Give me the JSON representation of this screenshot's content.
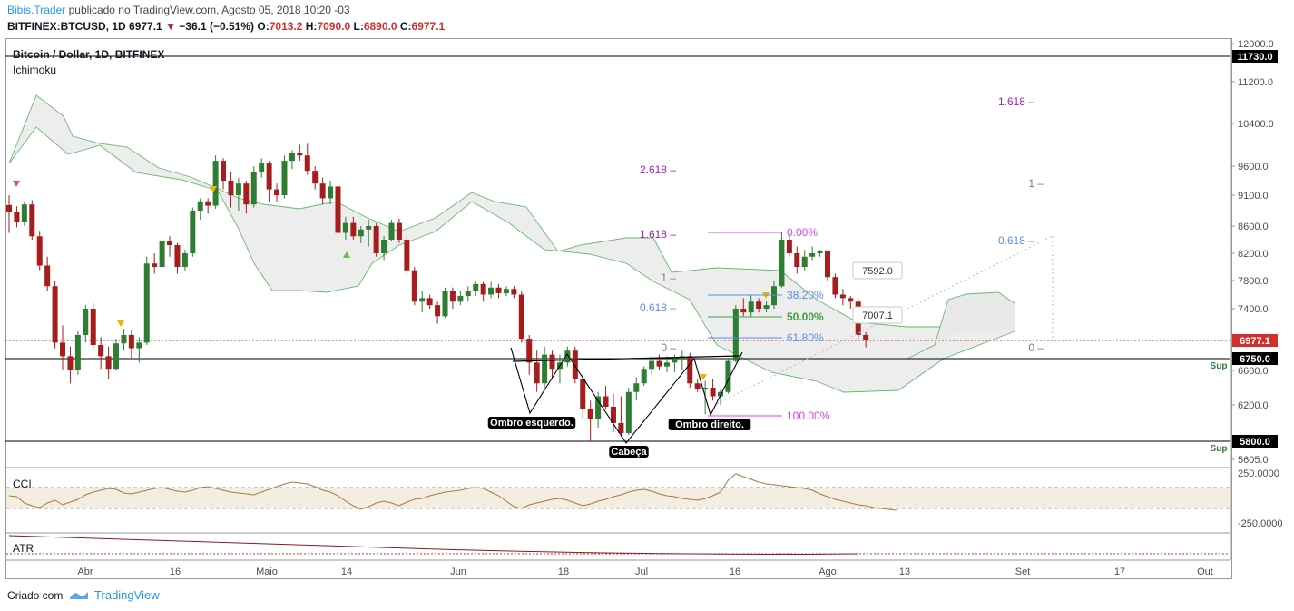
{
  "header": {
    "author": "Bibis.Trader",
    "published": "publicado no TradingView.com, Agosto 05, 2018 10:20 -03",
    "symbol": "BITFINEX:BTCUSD, 1D",
    "last": "6977.1",
    "change": "−36.1 (−0.51%)",
    "open_label": "O:",
    "open": "7013.2",
    "high_label": "H:",
    "high": "7090.0",
    "low_label": "L:",
    "low": "6890.0",
    "close_label": "C:",
    "close": "6977.1"
  },
  "panes": {
    "main_title": "Bitcoin / Dollar, 1D, BITFINEX",
    "indicator": "Ichimoku",
    "cci_label": "CCI",
    "atr_label": "ATR"
  },
  "footer": {
    "created": "Criado com",
    "brand": "TradingView"
  },
  "colors": {
    "up": "#2e7d32",
    "down": "#a51d1d",
    "cloud": "#e9e9e9",
    "cloud_edge": "#66bb6a",
    "cci": "#a67c3a",
    "atr": "#8b1a1a",
    "purple": "#9c27b0",
    "blue": "#5b8def",
    "green": "#43a047"
  },
  "chart_data": {
    "type": "candlestick",
    "title": "Bitcoin / Dollar, 1D, BITFINEX",
    "y_ticks": [
      "12000.0",
      "11200.0",
      "10400.0",
      "9600.0",
      "9100.0",
      "8600.0",
      "8200.0",
      "7800.0",
      "7400.0",
      "6600.0",
      "6200.0",
      "5800.0",
      "5605.0"
    ],
    "x_ticks": [
      "Abr",
      "16",
      "Maio",
      "14",
      "Jun",
      "18",
      "Jul",
      "16",
      "Ago",
      "13",
      "Set",
      "17",
      "Out"
    ],
    "price_badges": [
      {
        "value": "11730.0",
        "color": "#000000"
      },
      {
        "value": "6977.1",
        "color": "#d32f2f"
      },
      {
        "value": "6750.0",
        "color": "#000000"
      },
      {
        "value": "5800.0",
        "color": "#000000"
      }
    ],
    "support_labels": [
      "Sup",
      "Sup"
    ],
    "candles": [
      [
        8940,
        9100,
        8500,
        8830
      ],
      [
        8830,
        8920,
        8580,
        8660
      ],
      [
        8660,
        9000,
        8600,
        8950
      ],
      [
        8950,
        9020,
        8400,
        8450
      ],
      [
        8450,
        8530,
        7950,
        8020
      ],
      [
        8020,
        8150,
        7650,
        7720
      ],
      [
        7720,
        7800,
        6880,
        6950
      ],
      [
        6950,
        7180,
        6600,
        6780
      ],
      [
        6780,
        6900,
        6450,
        6600
      ],
      [
        6600,
        7100,
        6550,
        7050
      ],
      [
        7050,
        7450,
        6950,
        7400
      ],
      [
        7400,
        7480,
        6850,
        6920
      ],
      [
        6920,
        7020,
        6620,
        6780
      ],
      [
        6780,
        6900,
        6500,
        6620
      ],
      [
        6620,
        7000,
        6600,
        6940
      ],
      [
        6940,
        7130,
        6850,
        7050
      ],
      [
        7050,
        7120,
        6750,
        6880
      ],
      [
        6880,
        7020,
        6700,
        6950
      ],
      [
        6950,
        8150,
        6920,
        8050
      ],
      [
        8050,
        8200,
        7900,
        8000
      ],
      [
        8000,
        8420,
        7980,
        8380
      ],
      [
        8380,
        8450,
        8150,
        8320
      ],
      [
        8320,
        8350,
        7900,
        8000
      ],
      [
        8000,
        8250,
        7950,
        8200
      ],
      [
        8200,
        8900,
        8150,
        8850
      ],
      [
        8850,
        9050,
        8700,
        9000
      ],
      [
        9000,
        9050,
        8800,
        8930
      ],
      [
        8930,
        9800,
        8880,
        9700
      ],
      [
        9700,
        9750,
        9200,
        9350
      ],
      [
        9350,
        9500,
        8900,
        9100
      ],
      [
        9100,
        9400,
        8850,
        9300
      ],
      [
        9300,
        9350,
        8800,
        8950
      ],
      [
        8950,
        9600,
        8900,
        9500
      ],
      [
        9500,
        9750,
        9400,
        9650
      ],
      [
        9650,
        9700,
        9000,
        9200
      ],
      [
        9200,
        9300,
        9000,
        9100
      ],
      [
        9100,
        9800,
        9050,
        9700
      ],
      [
        9700,
        9900,
        9550,
        9850
      ],
      [
        9850,
        10000,
        9700,
        9800
      ],
      [
        9800,
        10020,
        9450,
        9520
      ],
      [
        9520,
        9600,
        9200,
        9300
      ],
      [
        9300,
        9400,
        8950,
        9050
      ],
      [
        9050,
        9350,
        8950,
        9250
      ],
      [
        9250,
        9280,
        8450,
        8500
      ],
      [
        8500,
        8750,
        8400,
        8650
      ],
      [
        8650,
        8750,
        8400,
        8450
      ],
      [
        8450,
        8600,
        8350,
        8550
      ],
      [
        8550,
        8700,
        8300,
        8600
      ],
      [
        8600,
        8650,
        8150,
        8200
      ],
      [
        8200,
        8450,
        8100,
        8400
      ],
      [
        8400,
        8700,
        8380,
        8650
      ],
      [
        8650,
        8720,
        8350,
        8400
      ],
      [
        8400,
        8450,
        7900,
        7950
      ],
      [
        7950,
        8000,
        7450,
        7500
      ],
      [
        7500,
        7650,
        7350,
        7550
      ],
      [
        7550,
        7600,
        7400,
        7450
      ],
      [
        7450,
        7500,
        7200,
        7300
      ],
      [
        7300,
        7700,
        7280,
        7650
      ],
      [
        7650,
        7700,
        7400,
        7500
      ],
      [
        7500,
        7650,
        7450,
        7580
      ],
      [
        7580,
        7720,
        7500,
        7650
      ],
      [
        7650,
        7800,
        7580,
        7750
      ],
      [
        7750,
        7780,
        7500,
        7600
      ],
      [
        7600,
        7780,
        7550,
        7700
      ],
      [
        7700,
        7750,
        7550,
        7620
      ],
      [
        7620,
        7720,
        7580,
        7680
      ],
      [
        7680,
        7720,
        7550,
        7600
      ],
      [
        7600,
        7650,
        6950,
        7000
      ],
      [
        7000,
        7050,
        6550,
        6700
      ],
      [
        6700,
        6850,
        6350,
        6450
      ],
      [
        6450,
        6900,
        6400,
        6800
      ],
      [
        6800,
        6850,
        6500,
        6620
      ],
      [
        6620,
        6800,
        6450,
        6700
      ],
      [
        6700,
        6900,
        6650,
        6850
      ],
      [
        6850,
        6900,
        6450,
        6500
      ],
      [
        6500,
        6550,
        6050,
        6150
      ],
      [
        6150,
        6250,
        5800,
        6050
      ],
      [
        6050,
        6350,
        5950,
        6300
      ],
      [
        6300,
        6420,
        6150,
        6180
      ],
      [
        6180,
        6330,
        5900,
        6000
      ],
      [
        6000,
        6300,
        5850,
        5890
      ],
      [
        5890,
        6400,
        5870,
        6350
      ],
      [
        6350,
        6520,
        6250,
        6450
      ],
      [
        6450,
        6650,
        6420,
        6620
      ],
      [
        6620,
        6780,
        6550,
        6720
      ],
      [
        6720,
        6800,
        6600,
        6650
      ],
      [
        6650,
        6780,
        6580,
        6700
      ],
      [
        6700,
        6800,
        6580,
        6750
      ],
      [
        6750,
        6850,
        6600,
        6780
      ],
      [
        6780,
        6820,
        6400,
        6450
      ],
      [
        6450,
        6500,
        6350,
        6380
      ],
      [
        6380,
        6480,
        6100,
        6400
      ],
      [
        6400,
        6500,
        6250,
        6300
      ],
      [
        6300,
        6380,
        6200,
        6350
      ],
      [
        6350,
        6750,
        6330,
        6720
      ],
      [
        6720,
        7450,
        6700,
        7400
      ],
      [
        7400,
        7550,
        7300,
        7350
      ],
      [
        7350,
        7600,
        7300,
        7500
      ],
      [
        7500,
        7550,
        7350,
        7400
      ],
      [
        7400,
        7500,
        7350,
        7450
      ],
      [
        7450,
        7800,
        7400,
        7720
      ],
      [
        7720,
        8500,
        7700,
        8400
      ],
      [
        8400,
        8480,
        8150,
        8200
      ],
      [
        8200,
        8300,
        7900,
        8000
      ],
      [
        8000,
        8250,
        7950,
        8150
      ],
      [
        8150,
        8300,
        8100,
        8200
      ],
      [
        8200,
        8250,
        8150,
        8230
      ],
      [
        8230,
        8250,
        7800,
        7850
      ],
      [
        7850,
        7900,
        7550,
        7600
      ],
      [
        7600,
        7680,
        7450,
        7550
      ],
      [
        7550,
        7580,
        7400,
        7500
      ],
      [
        7500,
        7550,
        7000,
        7050
      ],
      [
        7050,
        7090,
        6890,
        6977.1
      ]
    ],
    "fib_right": [
      {
        "label": "1.618",
        "value": 11000,
        "color": "#9c27b0"
      },
      {
        "label": "1",
        "value": 9100,
        "color": "#787b86"
      },
      {
        "label": "0.618",
        "value": 8200,
        "color": "#5b8def"
      },
      {
        "label": "0",
        "value": 6977,
        "color": "#787b86"
      }
    ],
    "fib_mid": [
      {
        "label": "2.618",
        "value": 9600,
        "color": "#9c27b0"
      },
      {
        "label": "1.618",
        "value": 8500,
        "color": "#9c27b0"
      },
      {
        "label": "1",
        "value": 7800,
        "color": "#787b86"
      },
      {
        "label": "0.618",
        "value": 7400,
        "color": "#5b8def"
      },
      {
        "label": "0",
        "value": 6777,
        "color": "#787b86"
      }
    ],
    "fib_retracement": [
      {
        "label": "0.00%",
        "value": 8500,
        "color": "#e040fb"
      },
      {
        "label": "38.20%",
        "value": 7600,
        "color": "#5b8def"
      },
      {
        "label": "50.00%",
        "value": 7280,
        "color": "#43a047"
      },
      {
        "label": "61.80%",
        "value": 6980,
        "color": "#5b8def"
      },
      {
        "label": "100.00%",
        "value": 6050,
        "color": "#e040fb"
      }
    ],
    "callouts": [
      {
        "label": "7592.0",
        "value": 7592
      },
      {
        "label": "7007.1",
        "value": 7007
      }
    ],
    "pattern_labels": [
      "Ombro esquerdo.",
      "Cabeça",
      "Ombro direito."
    ],
    "cci_ticks": [
      "250.0000",
      "-250.0000"
    ],
    "cci": [
      20,
      10,
      -60,
      -90,
      -110,
      -60,
      -30,
      -80,
      -50,
      -20,
      30,
      60,
      80,
      100,
      90,
      50,
      40,
      60,
      80,
      100,
      110,
      90,
      70,
      60,
      80,
      110,
      120,
      100,
      80,
      60,
      50,
      40,
      30,
      60,
      90,
      120,
      150,
      170,
      160,
      150,
      120,
      80,
      60,
      20,
      -40,
      -90,
      -130,
      -100,
      -60,
      -40,
      -60,
      -90,
      -50,
      -20,
      -10,
      20,
      40,
      60,
      70,
      80,
      100,
      110,
      100,
      60,
      20,
      -40,
      -100,
      -120,
      -80,
      -60,
      -40,
      -20,
      -10,
      -30,
      -60,
      -90,
      -70,
      -40,
      -20,
      10,
      30,
      60,
      80,
      90,
      70,
      40,
      20,
      10,
      -10,
      -20,
      -30,
      -10,
      20,
      60,
      190,
      260,
      230,
      200,
      170,
      150,
      140,
      130,
      120,
      110,
      100,
      80,
      40,
      10,
      -20,
      -40,
      -60,
      -80,
      -90,
      -110,
      -120,
      -130,
      -140
    ]
  }
}
